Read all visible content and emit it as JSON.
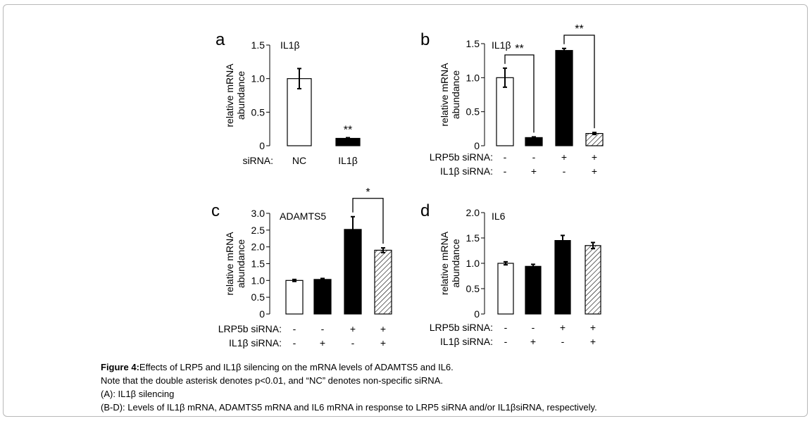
{
  "chart_data": [
    {
      "panel": "a",
      "type": "bar",
      "gene_label": "IL1β",
      "ylabel": [
        "relative mRNA",
        "abundance"
      ],
      "ylim": [
        0,
        1.5
      ],
      "yticks": [
        "0",
        "0.5",
        "1.0",
        "1.5"
      ],
      "categories": [
        "NC",
        "IL1β"
      ],
      "condition_row_labels": [
        "siRNA:"
      ],
      "values": [
        1.0,
        0.11
      ],
      "errors": [
        0.15,
        0.01
      ],
      "fills": [
        "white",
        "black"
      ],
      "annotations": [
        {
          "text": "**",
          "bar": 1
        }
      ],
      "brackets": []
    },
    {
      "panel": "b",
      "type": "bar",
      "gene_label": "IL1β",
      "ylabel": [
        "relative mRNA",
        "abundance"
      ],
      "ylim": [
        0,
        1.5
      ],
      "yticks": [
        "0",
        "0.5",
        "1.0",
        "1.5"
      ],
      "condition_row_labels": [
        "LRP5b siRNA:",
        "IL1β    siRNA:"
      ],
      "conditions": [
        [
          "-",
          "-",
          "+",
          "+"
        ],
        [
          "-",
          "+",
          "-",
          "+"
        ]
      ],
      "values": [
        1.0,
        0.12,
        1.4,
        0.18
      ],
      "errors": [
        0.14,
        0.01,
        0.03,
        0.015
      ],
      "fills": [
        "white",
        "black",
        "black",
        "hatched"
      ],
      "annotations": [],
      "brackets": [
        {
          "from": 0,
          "to": 1,
          "text": "**"
        },
        {
          "from": 2,
          "to": 3,
          "text": "**"
        }
      ]
    },
    {
      "panel": "c",
      "type": "bar",
      "gene_label": "ADAMTS5",
      "ylabel": [
        "relative mRNA",
        "abundance"
      ],
      "ylim": [
        0,
        3.0
      ],
      "yticks": [
        "0",
        "0.5",
        "1.0",
        "1.5",
        "2.0",
        "2.5",
        "3.0"
      ],
      "condition_row_labels": [
        "LRP5b siRNA:",
        "IL1β     siRNA:"
      ],
      "conditions": [
        [
          "-",
          "-",
          "+",
          "+"
        ],
        [
          "-",
          "+",
          "-",
          "+"
        ]
      ],
      "values": [
        1.0,
        1.03,
        2.52,
        1.9
      ],
      "errors": [
        0.03,
        0.03,
        0.38,
        0.07
      ],
      "fills": [
        "white",
        "black",
        "black",
        "hatched"
      ],
      "annotations": [],
      "brackets": [
        {
          "from": 2,
          "to": 3,
          "text": "*"
        }
      ]
    },
    {
      "panel": "d",
      "type": "bar",
      "gene_label": "IL6",
      "ylabel": [
        "relative mRNA",
        "abundance"
      ],
      "ylim": [
        0,
        2.0
      ],
      "yticks": [
        "0",
        "0.5",
        "1.0",
        "1.5",
        "2.0"
      ],
      "condition_row_labels": [
        "LRP5b siRNA:",
        "IL1β     siRNA:"
      ],
      "conditions": [
        [
          "-",
          "-",
          "+",
          "+"
        ],
        [
          "-",
          "+",
          "-",
          "+"
        ]
      ],
      "values": [
        1.0,
        0.94,
        1.45,
        1.35
      ],
      "errors": [
        0.03,
        0.04,
        0.1,
        0.06
      ],
      "fills": [
        "white",
        "black",
        "black",
        "hatched"
      ],
      "annotations": [],
      "brackets": []
    }
  ],
  "caption": {
    "figure_label": "Figure 4:",
    "line1": "Effects of LRP5 and IL1β silencing on the mRNA levels of ADAMTS5 and IL6.",
    "line2": "Note that the double asterisk denotes p<0.01, and “NC” denotes non-specific siRNA.",
    "line3": "(A): IL1β silencing",
    "line4": "(B-D): Levels of IL1β mRNA, ADAMTS5 mRNA and IL6 mRNA in response to LRP5 siRNA and/or IL1βsiRNA, respectively."
  }
}
